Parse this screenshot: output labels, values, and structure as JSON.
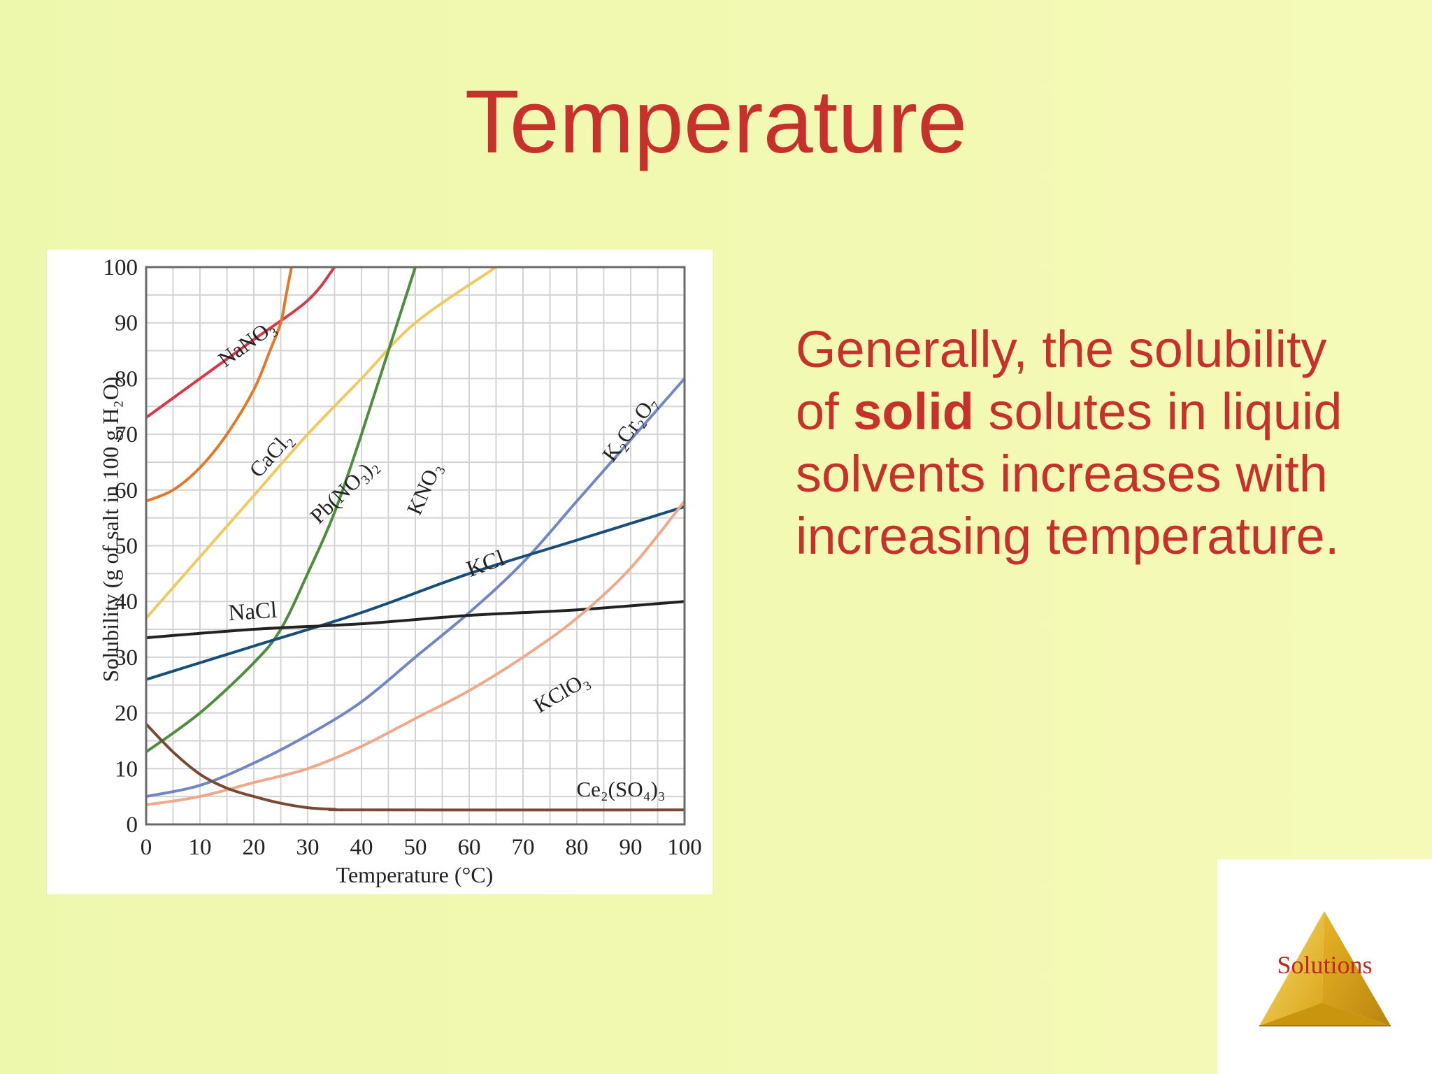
{
  "slide": {
    "title": "Temperature",
    "body_parts": {
      "p1": "Generally, the solubility of ",
      "bold": "solid",
      "p2": " solutes in liquid solvents increases with increasing temperature."
    },
    "logo_label": "Solutions"
  },
  "colors": {
    "title": "#c8302b",
    "body_text": "#c8302b",
    "background": "#f2f9b2"
  },
  "chart_data": {
    "type": "line",
    "title": "",
    "xlabel": "Temperature (°C)",
    "ylabel": "Solubility (g of salt in 100 g H₂O)",
    "xlim": [
      0,
      100
    ],
    "ylim": [
      0,
      100
    ],
    "grid": true,
    "x_ticks": [
      "0",
      "10",
      "20",
      "30",
      "40",
      "50",
      "60",
      "70",
      "80",
      "90",
      "100"
    ],
    "y_ticks": [
      "0",
      "10",
      "20",
      "30",
      "40",
      "50",
      "60",
      "70",
      "80",
      "90",
      "100"
    ],
    "series": [
      {
        "name": "NaNO₃",
        "color": "#d8394a",
        "points": [
          [
            0,
            73
          ],
          [
            10,
            80
          ],
          [
            20,
            87
          ],
          [
            30,
            94
          ],
          [
            35,
            100
          ]
        ]
      },
      {
        "name": "CaCl₂",
        "color": "#e07a2a",
        "points": [
          [
            0,
            58
          ],
          [
            5,
            60
          ],
          [
            10,
            64
          ],
          [
            15,
            70
          ],
          [
            20,
            78
          ],
          [
            23,
            85
          ],
          [
            25,
            90
          ],
          [
            26,
            95
          ],
          [
            27,
            100
          ]
        ]
      },
      {
        "name": "Pb(NO₃)₂",
        "color": "#f1c95e",
        "points": [
          [
            0,
            37
          ],
          [
            10,
            48
          ],
          [
            20,
            59
          ],
          [
            30,
            70
          ],
          [
            40,
            80
          ],
          [
            50,
            90
          ],
          [
            65,
            100
          ]
        ]
      },
      {
        "name": "KNO₃",
        "color": "#4e8d3c",
        "points": [
          [
            0,
            13
          ],
          [
            10,
            20
          ],
          [
            20,
            29
          ],
          [
            25,
            35
          ],
          [
            30,
            45
          ],
          [
            35,
            56
          ],
          [
            40,
            70
          ],
          [
            45,
            85
          ],
          [
            50,
            100
          ]
        ]
      },
      {
        "name": "K₂Cr₂O₇",
        "color": "#7187c4",
        "points": [
          [
            0,
            5
          ],
          [
            10,
            7
          ],
          [
            20,
            11
          ],
          [
            30,
            16
          ],
          [
            40,
            22
          ],
          [
            50,
            30
          ],
          [
            60,
            38
          ],
          [
            70,
            47
          ],
          [
            80,
            58
          ],
          [
            90,
            69
          ],
          [
            100,
            80
          ]
        ]
      },
      {
        "name": "KCl",
        "color": "#174f7a",
        "points": [
          [
            0,
            26
          ],
          [
            20,
            32
          ],
          [
            40,
            38
          ],
          [
            60,
            45
          ],
          [
            80,
            51
          ],
          [
            100,
            57
          ]
        ]
      },
      {
        "name": "NaCl",
        "color": "#222222",
        "points": [
          [
            0,
            33.5
          ],
          [
            20,
            35
          ],
          [
            40,
            36
          ],
          [
            60,
            37.5
          ],
          [
            80,
            38.5
          ],
          [
            100,
            40
          ]
        ]
      },
      {
        "name": "KClO₃",
        "color": "#f0a988",
        "points": [
          [
            0,
            3.5
          ],
          [
            10,
            5
          ],
          [
            20,
            7.5
          ],
          [
            30,
            10
          ],
          [
            40,
            14
          ],
          [
            50,
            19
          ],
          [
            60,
            24
          ],
          [
            70,
            30
          ],
          [
            80,
            37
          ],
          [
            90,
            46
          ],
          [
            100,
            58
          ]
        ]
      },
      {
        "name": "Ce₂(SO₄)₃",
        "color": "#7a4a34",
        "points": [
          [
            0,
            18
          ],
          [
            5,
            13
          ],
          [
            10,
            9
          ],
          [
            15,
            6.5
          ],
          [
            20,
            5
          ],
          [
            25,
            3.8
          ],
          [
            30,
            3
          ],
          [
            35,
            2.7
          ],
          [
            40,
            2.6
          ],
          [
            100,
            2.6
          ]
        ]
      }
    ]
  }
}
